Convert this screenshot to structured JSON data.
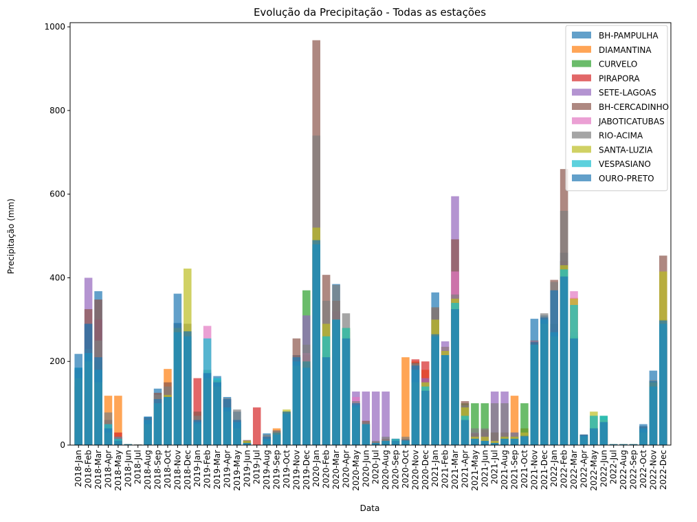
{
  "chart_data": {
    "type": "bar",
    "title": "Evolução da Precipitação - Todas as estações",
    "xlabel": "Data",
    "ylabel": "Precipitação (mm)",
    "ylim": [
      0,
      1010
    ],
    "yticks": [
      0,
      200,
      400,
      600,
      800,
      1000
    ],
    "legend_position": "top-right",
    "categories": [
      "2018-Jan",
      "2018-Feb",
      "2018-Mar",
      "2018-Apr",
      "2018-May",
      "2018-Jun",
      "2018-Jul",
      "2018-Aug",
      "2018-Sep",
      "2018-Oct",
      "2018-Nov",
      "2018-Dec",
      "2019-Jan",
      "2019-Feb",
      "2019-Mar",
      "2019-Apr",
      "2019-May",
      "2019-Jun",
      "2019-Jul",
      "2019-Aug",
      "2019-Sep",
      "2019-Oct",
      "2019-Nov",
      "2019-Dec",
      "2020-Jan",
      "2020-Feb",
      "2020-Mar",
      "2020-Apr",
      "2020-May",
      "2020-Jun",
      "2020-Jul",
      "2020-Aug",
      "2020-Sep",
      "2020-Oct",
      "2020-Nov",
      "2020-Dec",
      "2021-Jan",
      "2021-Feb",
      "2021-Mar",
      "2021-Apr",
      "2021-May",
      "2021-Jun",
      "2021-Jul",
      "2021-Aug",
      "2021-Sep",
      "2021-Oct",
      "2021-Nov",
      "2021-Dec",
      "2022-Jan",
      "2022-Feb",
      "2022-Mar",
      "2022-Apr",
      "2022-May",
      "2022-Jun",
      "2022-Jul",
      "2022-Aug",
      "2022-Sep",
      "2022-Oct",
      "2022-Nov",
      "2022-Dec"
    ],
    "series": [
      {
        "name": "BH-PAMPULHA",
        "color": "#1f77b4",
        "values": [
          218,
          290,
          368,
          50,
          10,
          2,
          1,
          68,
          135,
          112,
          362,
          272,
          60,
          175,
          165,
          115,
          80,
          5,
          0,
          28,
          30,
          80,
          215,
          190,
          490,
          210,
          385,
          255,
          100,
          55,
          5,
          10,
          15,
          12,
          190,
          130,
          365,
          186,
          325,
          10,
          15,
          10,
          2,
          20,
          15,
          22,
          302,
          310,
          270,
          460,
          255,
          25,
          40,
          55,
          2,
          2,
          2,
          50,
          178,
          298
        ]
      },
      {
        "name": "DIAMANTINA",
        "color": "#ff7f0e",
        "values": [
          150,
          170,
          45,
          118,
          118,
          2,
          1,
          50,
          90,
          182,
          220,
          230,
          30,
          150,
          130,
          80,
          40,
          5,
          0,
          10,
          40,
          60,
          185,
          200,
          480,
          200,
          300,
          200,
          90,
          50,
          5,
          10,
          10,
          210,
          200,
          180,
          250,
          180,
          310,
          20,
          20,
          10,
          5,
          15,
          118,
          40,
          250,
          300,
          260,
          420,
          352,
          20,
          30,
          60,
          2,
          2,
          2,
          30,
          120,
          290
        ]
      },
      {
        "name": "CURVELO",
        "color": "#2ca02c",
        "values": [
          140,
          160,
          200,
          30,
          20,
          2,
          1,
          50,
          80,
          100,
          250,
          250,
          40,
          160,
          140,
          70,
          50,
          5,
          0,
          15,
          25,
          80,
          190,
          370,
          470,
          215,
          300,
          280,
          100,
          50,
          5,
          10,
          10,
          10,
          150,
          130,
          230,
          185,
          325,
          100,
          100,
          100,
          30,
          20,
          20,
          100,
          250,
          300,
          290,
          440,
          260,
          20,
          35,
          70,
          2,
          2,
          2,
          35,
          140,
          280
        ]
      },
      {
        "name": "PIRAPORA",
        "color": "#d62728",
        "values": [
          30,
          120,
          80,
          20,
          30,
          2,
          1,
          30,
          60,
          90,
          200,
          150,
          160,
          100,
          100,
          50,
          20,
          5,
          90,
          10,
          20,
          40,
          150,
          150,
          400,
          160,
          250,
          200,
          80,
          50,
          5,
          10,
          10,
          10,
          205,
          200,
          200,
          150,
          300,
          20,
          10,
          10,
          5,
          10,
          10,
          20,
          200,
          280,
          250,
          350,
          200,
          15,
          30,
          40,
          2,
          2,
          2,
          20,
          90,
          260
        ]
      },
      {
        "name": "SETE-LAGOAS",
        "color": "#9467bd",
        "values": [
          180,
          400,
          300,
          40,
          20,
          2,
          1,
          60,
          100,
          120,
          260,
          260,
          50,
          170,
          150,
          110,
          60,
          10,
          0,
          20,
          30,
          70,
          200,
          310,
          460,
          220,
          320,
          270,
          128,
          128,
          128,
          128,
          15,
          10,
          190,
          160,
          300,
          248,
          595,
          30,
          30,
          30,
          128,
          128,
          30,
          20,
          250,
          300,
          280,
          440,
          270,
          20,
          40,
          60,
          2,
          2,
          2,
          40,
          150,
          300
        ]
      },
      {
        "name": "BH-CERCADINHO",
        "color": "#8c564b",
        "values": [
          180,
          325,
          348,
          60,
          15,
          2,
          1,
          65,
          125,
          150,
          280,
          272,
          80,
          170,
          155,
          108,
          60,
          12,
          0,
          20,
          35,
          80,
          255,
          215,
          968,
          407,
          345,
          255,
          100,
          58,
          8,
          15,
          14,
          15,
          197,
          130,
          328,
          225,
          492,
          105,
          28,
          37,
          30,
          30,
          20,
          20,
          246,
          305,
          395,
          660,
          255,
          25,
          40,
          55,
          2,
          2,
          2,
          45,
          150,
          453
        ]
      },
      {
        "name": "JABOTICATUBAS",
        "color": "#e377c2",
        "values": [
          150,
          200,
          150,
          30,
          10,
          2,
          1,
          50,
          80,
          100,
          200,
          200,
          50,
          285,
          140,
          80,
          40,
          5,
          0,
          10,
          20,
          60,
          180,
          220,
          400,
          200,
          300,
          210,
          115,
          40,
          5,
          10,
          10,
          10,
          150,
          140,
          250,
          235,
          415,
          40,
          20,
          20,
          10,
          10,
          10,
          20,
          200,
          280,
          250,
          400,
          368,
          20,
          30,
          60,
          2,
          2,
          2,
          30,
          120,
          260
        ]
      },
      {
        "name": "RIO-ACIMA",
        "color": "#7f7f7f",
        "values": [
          170,
          230,
          250,
          78,
          20,
          2,
          1,
          65,
          120,
          140,
          290,
          290,
          70,
          180,
          155,
          112,
          85,
          10,
          0,
          25,
          35,
          78,
          210,
          240,
          740,
          345,
          383,
          315,
          105,
          55,
          10,
          20,
          15,
          20,
          195,
          150,
          330,
          235,
          360,
          95,
          40,
          40,
          100,
          100,
          30,
          30,
          240,
          315,
          390,
          560,
          260,
          25,
          70,
          60,
          2,
          2,
          2,
          45,
          155,
          300
        ]
      },
      {
        "name": "SANTA-LUZIA",
        "color": "#bcbd22",
        "values": [
          160,
          200,
          150,
          30,
          10,
          2,
          1,
          50,
          100,
          120,
          280,
          422,
          50,
          160,
          140,
          80,
          40,
          10,
          0,
          10,
          30,
          85,
          190,
          200,
          520,
          290,
          300,
          280,
          90,
          50,
          5,
          10,
          10,
          10,
          150,
          150,
          300,
          225,
          350,
          90,
          20,
          20,
          10,
          20,
          20,
          30,
          240,
          290,
          260,
          430,
          350,
          20,
          80,
          60,
          2,
          2,
          2,
          30,
          150,
          415
        ]
      },
      {
        "name": "VESPASIANO",
        "color": "#17becf",
        "values": [
          185,
          220,
          180,
          50,
          15,
          2,
          1,
          60,
          100,
          115,
          270,
          260,
          55,
          255,
          160,
          90,
          55,
          5,
          0,
          15,
          25,
          75,
          200,
          185,
          480,
          260,
          300,
          280,
          95,
          50,
          5,
          10,
          15,
          10,
          180,
          140,
          260,
          215,
          340,
          70,
          15,
          10,
          5,
          15,
          15,
          20,
          240,
          300,
          270,
          420,
          335,
          22,
          70,
          70,
          2,
          2,
          2,
          40,
          140,
          290
        ]
      },
      {
        "name": "OURO-PRETO",
        "color": "#1f77b4",
        "values": [
          185,
          290,
          210,
          40,
          10,
          2,
          1,
          68,
          110,
          115,
          292,
          272,
          60,
          172,
          150,
          110,
          60,
          5,
          0,
          20,
          30,
          80,
          210,
          200,
          490,
          210,
          300,
          255,
          100,
          50,
          5,
          10,
          10,
          12,
          190,
          130,
          265,
          215,
          325,
          60,
          15,
          10,
          5,
          15,
          15,
          22,
          246,
          305,
          370,
          403,
          255,
          25,
          40,
          55,
          2,
          2,
          2,
          45,
          153,
          298
        ]
      }
    ]
  }
}
